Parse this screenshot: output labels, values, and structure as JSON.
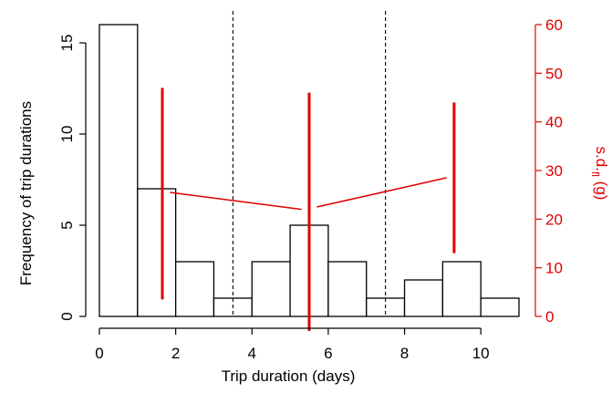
{
  "chart_data": {
    "type": "bar",
    "subtype": "histogram with secondary-axis overlay",
    "xlabel": "Trip duration (days)",
    "ylabel": "Frequency of trip durations",
    "y2label_main": "s.d.",
    "y2label_sub": "fl",
    "y2label_unit": " (g)",
    "xlim": [
      0,
      11
    ],
    "ylim": [
      0,
      16
    ],
    "y2lim": [
      0,
      60
    ],
    "x_ticks": [
      "0",
      "2",
      "4",
      "6",
      "8",
      "10"
    ],
    "y_ticks": [
      "0",
      "5",
      "10",
      "15"
    ],
    "y2_ticks": [
      "0",
      "10",
      "20",
      "30",
      "40",
      "50",
      "60"
    ],
    "bins": [
      {
        "start": 0,
        "end": 1,
        "count": 16
      },
      {
        "start": 1,
        "end": 2,
        "count": 7
      },
      {
        "start": 2,
        "end": 3,
        "count": 3
      },
      {
        "start": 3,
        "end": 4,
        "count": 1
      },
      {
        "start": 4,
        "end": 5,
        "count": 3
      },
      {
        "start": 5,
        "end": 6,
        "count": 5
      },
      {
        "start": 6,
        "end": 7,
        "count": 3
      },
      {
        "start": 7,
        "end": 8,
        "count": 1
      },
      {
        "start": 8,
        "end": 9,
        "count": 2
      },
      {
        "start": 9,
        "end": 10,
        "count": 3
      },
      {
        "start": 10,
        "end": 11,
        "count": 1
      }
    ],
    "dashed_vlines_x": [
      3.5,
      7.5
    ],
    "sd_ranges": [
      {
        "x": 1.65,
        "low": 3.5,
        "high": 47
      },
      {
        "x": 5.5,
        "low": -3,
        "high": 46
      },
      {
        "x": 9.3,
        "low": 13,
        "high": 44
      }
    ],
    "sd_trend_segments": [
      {
        "x1": 1.85,
        "y1": 25.5,
        "x2": 5.3,
        "y2": 22
      },
      {
        "x1": 5.7,
        "y1": 22.5,
        "x2": 9.1,
        "y2": 28.5
      }
    ],
    "colors": {
      "bars": "#000000",
      "sd_series": "#e00000"
    },
    "grid": false
  }
}
